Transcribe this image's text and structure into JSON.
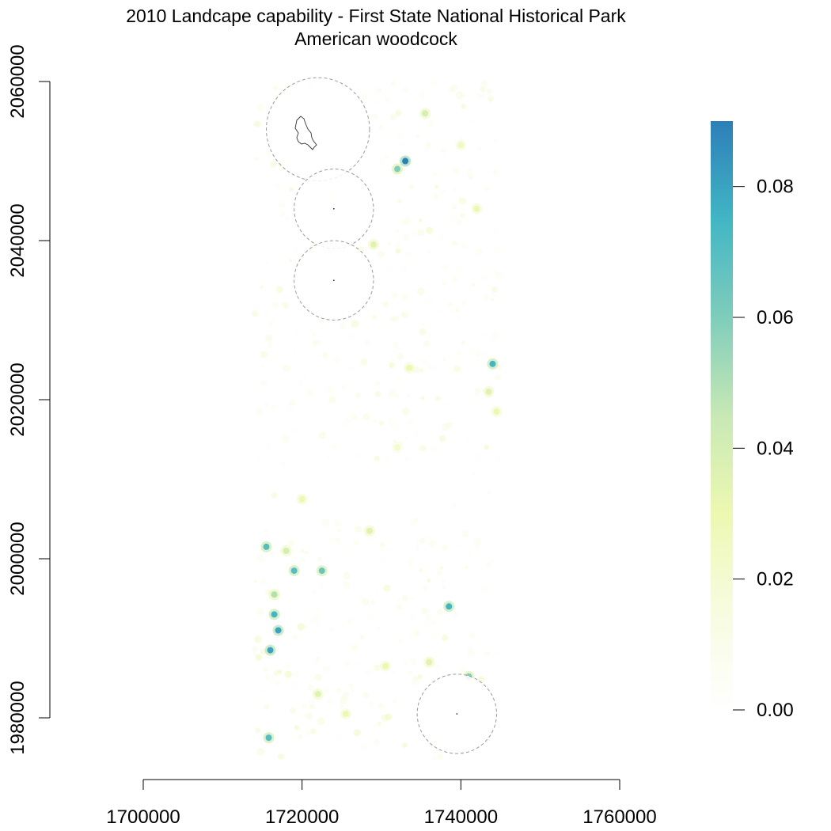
{
  "title": "2010 Landcape capability - First State National Historical Park",
  "subtitle": "American woodcock",
  "map": {
    "x_ticks": [
      1700000,
      1720000,
      1740000,
      1760000
    ],
    "x_tick_labels": [
      "1700000",
      "1720000",
      "1740000",
      "1760000"
    ],
    "y_ticks": [
      1980000,
      2000000,
      2020000,
      2040000,
      2060000
    ],
    "y_tick_labels": [
      "1980000",
      "2000000",
      "2020000",
      "2040000",
      "2060000"
    ],
    "x_range": [
      1700000,
      1760000
    ],
    "y_range": [
      1980000,
      2060000
    ],
    "raster_extent": {
      "xmin": 1714000,
      "xmax": 1745000,
      "ymin": 1975000,
      "ymax": 2060000
    },
    "buffers": [
      {
        "name": "buffer-north",
        "cx": 1722000,
        "cy": 2054000,
        "r": 6500
      },
      {
        "name": "buffer-upper-middle",
        "cx": 1724000,
        "cy": 2044000,
        "r": 5000
      },
      {
        "name": "buffer-lower-middle",
        "cx": 1724000,
        "cy": 2035000,
        "r": 5000
      },
      {
        "name": "buffer-south",
        "cx": 1739500,
        "cy": 1980500,
        "r": 5000
      }
    ],
    "hotspots": [
      {
        "x": 1733000,
        "y": 2050000,
        "v": 0.09
      },
      {
        "x": 1732000,
        "y": 2049000,
        "v": 0.06
      },
      {
        "x": 1744000,
        "y": 2024500,
        "v": 0.075
      },
      {
        "x": 1743500,
        "y": 2021000,
        "v": 0.035
      },
      {
        "x": 1735500,
        "y": 2056000,
        "v": 0.04
      },
      {
        "x": 1717000,
        "y": 1991000,
        "v": 0.08
      },
      {
        "x": 1716000,
        "y": 1988500,
        "v": 0.08
      },
      {
        "x": 1716500,
        "y": 1993000,
        "v": 0.075
      },
      {
        "x": 1719000,
        "y": 1998500,
        "v": 0.07
      },
      {
        "x": 1722500,
        "y": 1998500,
        "v": 0.065
      },
      {
        "x": 1718000,
        "y": 2001000,
        "v": 0.04
      },
      {
        "x": 1715500,
        "y": 2001500,
        "v": 0.07
      },
      {
        "x": 1715800,
        "y": 1977500,
        "v": 0.07
      },
      {
        "x": 1738500,
        "y": 1994000,
        "v": 0.075
      },
      {
        "x": 1741000,
        "y": 1985200,
        "v": 0.06
      },
      {
        "x": 1716500,
        "y": 1995500,
        "v": 0.05
      },
      {
        "x": 1729000,
        "y": 2039500,
        "v": 0.035
      },
      {
        "x": 1733500,
        "y": 2024000,
        "v": 0.03
      },
      {
        "x": 1728500,
        "y": 2003500,
        "v": 0.035
      },
      {
        "x": 1720000,
        "y": 2007500,
        "v": 0.03
      },
      {
        "x": 1722000,
        "y": 1983000,
        "v": 0.035
      },
      {
        "x": 1725500,
        "y": 1980500,
        "v": 0.03
      },
      {
        "x": 1730500,
        "y": 1986500,
        "v": 0.03
      },
      {
        "x": 1736000,
        "y": 1987000,
        "v": 0.035
      },
      {
        "x": 1742000,
        "y": 2044000,
        "v": 0.03
      },
      {
        "x": 1740000,
        "y": 2052000,
        "v": 0.025
      },
      {
        "x": 1744500,
        "y": 2018500,
        "v": 0.03
      },
      {
        "x": 1732000,
        "y": 2014000,
        "v": 0.02
      }
    ]
  },
  "legend": {
    "min": 0,
    "max": 0.09,
    "ticks": [
      0.0,
      0.02,
      0.04,
      0.06,
      0.08
    ],
    "tick_labels": [
      "0.00",
      "0.02",
      "0.04",
      "0.06",
      "0.08"
    ],
    "colors": [
      "#ffffff",
      "#f7fce0",
      "#edf8b1",
      "#c7e9b4",
      "#7fcdbb",
      "#41b6c4",
      "#2c7fb8"
    ]
  }
}
